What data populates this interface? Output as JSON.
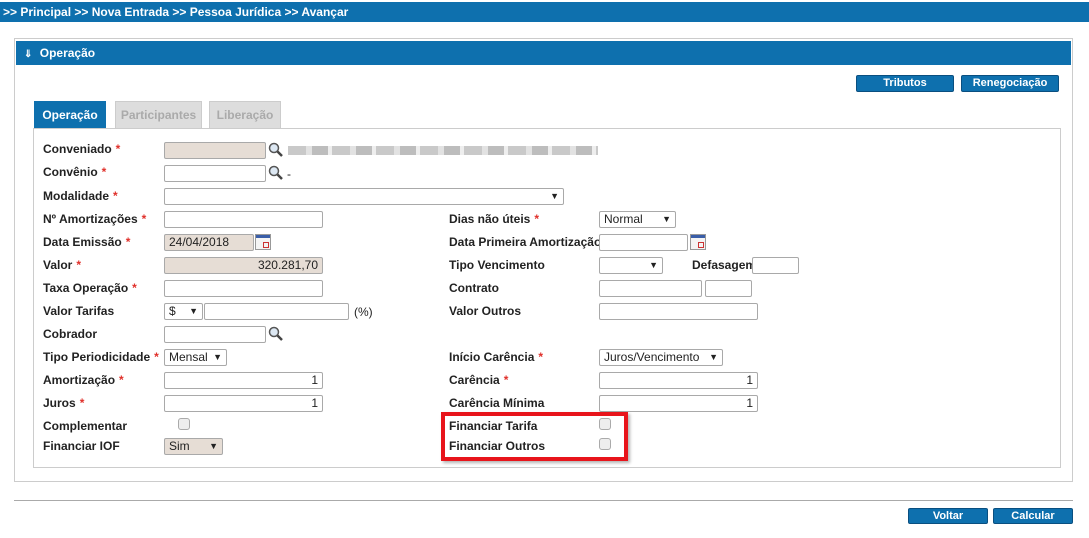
{
  "breadcrumb": ">> Principal >> Nova Entrada >> Pessoa Jurídica >> Avançar",
  "panel": {
    "title": "Operação",
    "icon": "double-chevron-down-icon"
  },
  "toolbar": {
    "tributos": "Tributos",
    "renegociacao": "Renegociação"
  },
  "tabs": [
    {
      "label": "Operação",
      "active": true
    },
    {
      "label": "Participantes",
      "active": false
    },
    {
      "label": "Liberação",
      "active": false
    }
  ],
  "form": {
    "required_mark": "*",
    "conveniado": {
      "label": "Conveniado",
      "value": ""
    },
    "convenio": {
      "label": "Convênio",
      "value": "",
      "suffix": "-"
    },
    "modalidade": {
      "label": "Modalidade",
      "value": ""
    },
    "n_amortizacoes": {
      "label": "Nº Amortizações",
      "value": ""
    },
    "data_emissao": {
      "label": "Data Emissão",
      "value": "24/04/2018"
    },
    "valor": {
      "label": "Valor",
      "value": "320.281,70"
    },
    "taxa_operacao": {
      "label": "Taxa Operação",
      "value": ""
    },
    "valor_tarifas": {
      "label": "Valor Tarifas",
      "currency": "$",
      "value": "",
      "suffix": "(%)"
    },
    "cobrador": {
      "label": "Cobrador",
      "value": ""
    },
    "tipo_periodicidade": {
      "label": "Tipo Periodicidade",
      "value": "Mensal"
    },
    "amortizacao": {
      "label": "Amortização",
      "value": "1"
    },
    "juros": {
      "label": "Juros",
      "value": "1"
    },
    "complementar": {
      "label": "Complementar",
      "checked": false
    },
    "financiar_iof": {
      "label": "Financiar IOF",
      "value": "Sim"
    },
    "dias_nao_uteis": {
      "label": "Dias não úteis",
      "value": "Normal"
    },
    "data_primeira_amortizacao": {
      "label": "Data Primeira Amortização",
      "value": ""
    },
    "tipo_vencimento": {
      "label": "Tipo Vencimento",
      "value": ""
    },
    "defasagem": {
      "label": "Defasagem",
      "value": ""
    },
    "contrato": {
      "label": "Contrato",
      "value": "",
      "value2": ""
    },
    "valor_outros": {
      "label": "Valor Outros",
      "value": ""
    },
    "inicio_carencia": {
      "label": "Início Carência",
      "value": "Juros/Vencimento"
    },
    "carencia": {
      "label": "Carência",
      "value": "1"
    },
    "carencia_minima": {
      "label": "Carência Mínima",
      "value": "1"
    },
    "financiar_tarifa": {
      "label": "Financiar Tarifa",
      "checked": false
    },
    "financiar_outros": {
      "label": "Financiar Outros",
      "checked": false
    }
  },
  "footer": {
    "voltar": "Voltar",
    "calcular": "Calcular"
  },
  "colors": {
    "primary": "#0e70ae",
    "highlight": "#e8141b"
  }
}
